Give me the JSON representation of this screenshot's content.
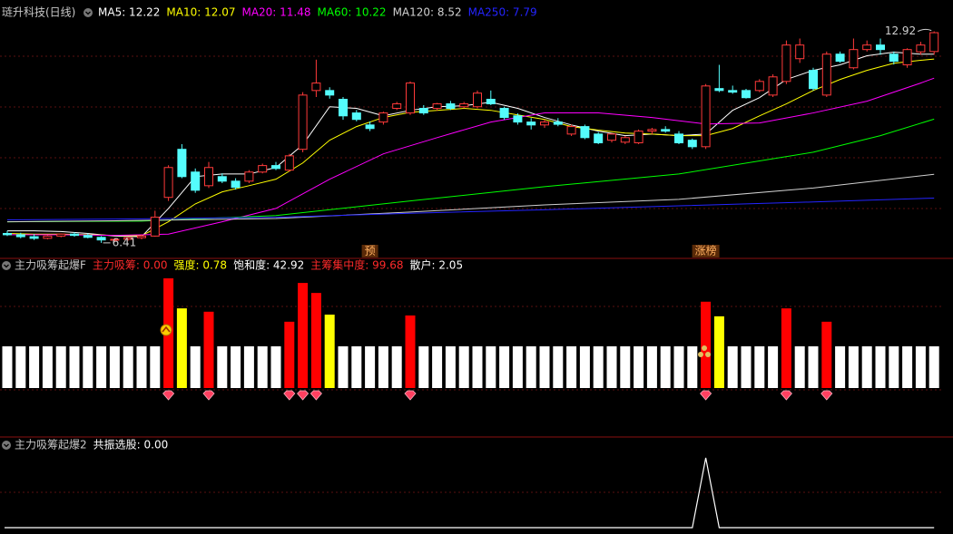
{
  "chart_data": [
    {
      "type": "candlestick",
      "title": "琏升科技(日线)",
      "title_color": "#c8c8c8",
      "ylim": [
        6.1,
        13.3
      ],
      "up_color": "#ff3a3a",
      "down_color": "#54fcfc",
      "candles": [
        [
          6.7,
          6.78,
          6.62,
          6.66
        ],
        [
          6.66,
          6.72,
          6.55,
          6.6
        ],
        [
          6.6,
          6.68,
          6.5,
          6.55
        ],
        [
          6.55,
          6.65,
          6.52,
          6.62
        ],
        [
          6.62,
          6.7,
          6.58,
          6.68
        ],
        [
          6.68,
          6.74,
          6.6,
          6.64
        ],
        [
          6.64,
          6.7,
          6.55,
          6.58
        ],
        [
          6.58,
          6.62,
          6.41,
          6.5
        ],
        [
          6.5,
          6.56,
          6.45,
          6.52
        ],
        [
          6.52,
          6.6,
          6.48,
          6.57
        ],
        [
          6.57,
          6.66,
          6.52,
          6.62
        ],
        [
          6.62,
          7.4,
          6.6,
          7.2
        ],
        [
          7.81,
          8.8,
          7.7,
          8.73
        ],
        [
          9.29,
          9.45,
          8.4,
          8.45
        ],
        [
          8.59,
          8.7,
          7.95,
          8.03
        ],
        [
          8.17,
          8.9,
          8.1,
          8.73
        ],
        [
          8.45,
          8.55,
          8.25,
          8.31
        ],
        [
          8.31,
          8.4,
          8.05,
          8.12
        ],
        [
          8.31,
          8.65,
          8.25,
          8.59
        ],
        [
          8.59,
          8.85,
          8.55,
          8.79
        ],
        [
          8.79,
          8.9,
          8.65,
          8.7
        ],
        [
          8.65,
          9.15,
          8.6,
          9.09
        ],
        [
          9.29,
          11.05,
          9.2,
          10.96
        ],
        [
          11.1,
          12.05,
          10.9,
          11.33
        ],
        [
          11.1,
          11.2,
          10.85,
          10.96
        ],
        [
          10.83,
          10.9,
          10.2,
          10.32
        ],
        [
          10.41,
          10.5,
          10.15,
          10.21
        ],
        [
          10.04,
          10.15,
          9.85,
          9.93
        ],
        [
          10.13,
          10.45,
          10.05,
          10.41
        ],
        [
          10.55,
          10.75,
          10.5,
          10.69
        ],
        [
          10.41,
          11.38,
          10.35,
          11.33
        ],
        [
          10.55,
          10.65,
          10.35,
          10.41
        ],
        [
          10.55,
          10.72,
          10.48,
          10.69
        ],
        [
          10.69,
          10.78,
          10.5,
          10.55
        ],
        [
          10.6,
          10.75,
          10.55,
          10.69
        ],
        [
          10.6,
          11.1,
          10.55,
          11.02
        ],
        [
          10.83,
          11.1,
          10.65,
          10.69
        ],
        [
          10.55,
          10.6,
          10.2,
          10.27
        ],
        [
          10.32,
          10.4,
          10.05,
          10.13
        ],
        [
          10.13,
          10.25,
          9.9,
          10.04
        ],
        [
          10.04,
          10.2,
          9.95,
          10.13
        ],
        [
          10.13,
          10.25,
          10.0,
          10.06
        ],
        [
          9.76,
          10.05,
          9.7,
          9.99
        ],
        [
          9.99,
          10.05,
          9.6,
          9.65
        ],
        [
          9.76,
          9.82,
          9.45,
          9.49
        ],
        [
          9.57,
          9.78,
          9.5,
          9.76
        ],
        [
          9.51,
          9.7,
          9.45,
          9.65
        ],
        [
          9.49,
          9.9,
          9.45,
          9.85
        ],
        [
          9.85,
          9.95,
          9.75,
          9.9
        ],
        [
          9.9,
          10.0,
          9.8,
          9.85
        ],
        [
          9.76,
          9.85,
          9.45,
          9.49
        ],
        [
          9.57,
          9.62,
          9.3,
          9.37
        ],
        [
          9.37,
          11.3,
          9.3,
          11.24
        ],
        [
          11.16,
          11.89,
          11.05,
          11.1
        ],
        [
          11.1,
          11.25,
          11.0,
          11.05
        ],
        [
          11.1,
          11.15,
          10.85,
          10.88
        ],
        [
          11.1,
          11.45,
          11.05,
          11.38
        ],
        [
          10.96,
          11.6,
          10.9,
          11.52
        ],
        [
          11.38,
          12.64,
          11.3,
          12.5
        ],
        [
          12.08,
          12.7,
          11.95,
          12.5
        ],
        [
          11.72,
          11.8,
          11.1,
          11.16
        ],
        [
          10.96,
          12.3,
          10.9,
          12.22
        ],
        [
          12.22,
          12.3,
          11.95,
          12.0
        ],
        [
          11.8,
          12.7,
          11.75,
          12.36
        ],
        [
          12.36,
          12.64,
          12.3,
          12.5
        ],
        [
          12.5,
          12.7,
          12.2,
          12.36
        ],
        [
          12.22,
          12.3,
          11.9,
          12.0
        ],
        [
          11.89,
          12.4,
          11.8,
          12.36
        ],
        [
          12.29,
          12.6,
          12.2,
          12.5
        ],
        [
          12.3,
          12.92,
          12.2,
          12.88
        ]
      ],
      "series": [
        {
          "name": "MA5: 12.22",
          "color": "#ffffff",
          "x": [
            0,
            2,
            4,
            6,
            8,
            10,
            12,
            14,
            16,
            18,
            20,
            22,
            24,
            26,
            28,
            30,
            32,
            34,
            36,
            38,
            40,
            42,
            44,
            46,
            48,
            50,
            52,
            54,
            56,
            58,
            60,
            62,
            64,
            66,
            68,
            69
          ],
          "values": [
            6.78,
            6.78,
            6.76,
            6.7,
            6.62,
            6.6,
            7.47,
            8.45,
            8.53,
            8.53,
            8.73,
            9.43,
            10.6,
            10.55,
            10.32,
            10.49,
            10.6,
            10.63,
            10.74,
            10.55,
            10.27,
            10.04,
            9.85,
            9.71,
            9.76,
            9.71,
            9.76,
            10.49,
            10.88,
            11.44,
            11.72,
            11.89,
            12.17,
            12.28,
            12.22,
            12.22
          ]
        },
        {
          "name": "MA10: 12.07",
          "color": "#ffff00",
          "x": [
            0,
            2,
            4,
            6,
            8,
            10,
            12,
            14,
            16,
            18,
            20,
            22,
            24,
            26,
            28,
            30,
            32,
            34,
            36,
            38,
            40,
            42,
            44,
            46,
            48,
            50,
            52,
            54,
            56,
            58,
            60,
            62,
            64,
            66,
            68,
            69
          ],
          "values": [
            6.7,
            6.68,
            6.68,
            6.66,
            6.64,
            6.63,
            7.06,
            7.61,
            7.98,
            8.17,
            8.37,
            8.87,
            9.57,
            9.99,
            10.27,
            10.43,
            10.49,
            10.55,
            10.49,
            10.35,
            10.21,
            9.99,
            9.88,
            9.79,
            9.76,
            9.71,
            9.71,
            9.93,
            10.32,
            10.69,
            11.1,
            11.44,
            11.72,
            11.94,
            12.03,
            12.07
          ]
        },
        {
          "name": "MA20: 11.48",
          "color": "#ff00ff",
          "x": [
            0,
            4,
            8,
            12,
            16,
            20,
            24,
            28,
            32,
            36,
            40,
            44,
            48,
            52,
            56,
            60,
            64,
            68,
            69
          ],
          "values": [
            6.66,
            6.66,
            6.64,
            6.68,
            7.06,
            7.47,
            8.37,
            9.15,
            9.65,
            10.13,
            10.41,
            10.41,
            10.27,
            10.07,
            10.1,
            10.41,
            10.77,
            11.33,
            11.48
          ]
        },
        {
          "name": "MA60: 10.22",
          "color": "#00ff00",
          "x": [
            0,
            10,
            20,
            30,
            40,
            50,
            60,
            65,
            69
          ],
          "values": [
            7.06,
            7.08,
            7.25,
            7.7,
            8.14,
            8.53,
            9.2,
            9.71,
            10.22
          ]
        },
        {
          "name": "MA120: 8.52",
          "color": "#d0d0d0",
          "x": [
            0,
            10,
            20,
            30,
            40,
            50,
            60,
            69
          ],
          "values": [
            7.06,
            7.1,
            7.16,
            7.36,
            7.58,
            7.75,
            8.1,
            8.52
          ]
        },
        {
          "name": "MA250: 7.79",
          "color": "#2424ff",
          "x": [
            0,
            10,
            20,
            30,
            40,
            50,
            60,
            69
          ],
          "values": [
            7.12,
            7.15,
            7.2,
            7.32,
            7.43,
            7.55,
            7.67,
            7.79
          ]
        }
      ],
      "annotations": [
        {
          "text": "12.92",
          "x": 69,
          "y": 12.92
        },
        {
          "text": "6.41",
          "x": 7,
          "y": 6.41
        }
      ],
      "markers": [
        {
          "text": "预",
          "x": 27
        },
        {
          "text": "涨榜",
          "x": 52
        }
      ]
    },
    {
      "type": "bar",
      "title": "主力吸筹起爆F",
      "title_color": "#c8c8c8",
      "ylim": [
        0,
        3
      ],
      "readouts": [
        {
          "text": "主力吸筹: 0.00",
          "color": "#ff2a2a"
        },
        {
          "text": "强度: 0.78",
          "color": "#ffff00"
        },
        {
          "text": "饱和度: 42.92",
          "color": "#ffffff"
        },
        {
          "text": "主筹集中度: 99.68",
          "color": "#ff2a2a"
        },
        {
          "text": "散户: 2.05",
          "color": "#ffffff"
        }
      ],
      "series": [
        {
          "color": "#ffffff",
          "values": [
            1,
            1,
            1,
            1,
            1,
            1,
            1,
            1,
            1,
            1,
            1,
            1,
            null,
            null,
            1,
            null,
            1,
            1,
            1,
            1,
            1,
            null,
            null,
            null,
            null,
            1,
            1,
            1,
            1,
            1,
            null,
            1,
            1,
            1,
            1,
            1,
            1,
            1,
            1,
            1,
            1,
            1,
            1,
            1,
            1,
            1,
            1,
            1,
            1,
            1,
            1,
            1,
            null,
            null,
            1,
            1,
            1,
            1,
            null,
            1,
            1,
            null,
            1,
            1,
            1,
            1,
            1,
            1,
            1,
            1
          ]
        },
        {
          "color": "#ff0000",
          "values": [
            null,
            null,
            null,
            null,
            null,
            null,
            null,
            null,
            null,
            null,
            null,
            null,
            2.63,
            null,
            null,
            1.83,
            null,
            null,
            null,
            null,
            null,
            1.59,
            2.52,
            2.28,
            null,
            null,
            null,
            null,
            null,
            null,
            1.74,
            null,
            null,
            null,
            null,
            null,
            null,
            null,
            null,
            null,
            null,
            null,
            null,
            null,
            null,
            null,
            null,
            null,
            null,
            null,
            null,
            null,
            2.07,
            null,
            null,
            null,
            null,
            null,
            1.91,
            null,
            null,
            1.59,
            null,
            null,
            null,
            null,
            null,
            null,
            null,
            null
          ]
        },
        {
          "color": "#ffff00",
          "values": [
            null,
            null,
            null,
            null,
            null,
            null,
            null,
            null,
            null,
            null,
            null,
            null,
            null,
            1.91,
            null,
            null,
            null,
            null,
            null,
            null,
            null,
            null,
            null,
            null,
            1.76,
            null,
            null,
            null,
            null,
            null,
            null,
            null,
            null,
            null,
            null,
            null,
            null,
            null,
            null,
            null,
            null,
            null,
            null,
            null,
            null,
            null,
            null,
            null,
            null,
            null,
            null,
            null,
            null,
            1.72,
            null,
            null,
            null,
            null,
            null,
            null,
            null,
            null,
            null,
            null,
            null,
            null,
            null,
            null,
            null,
            null
          ]
        }
      ]
    },
    {
      "type": "line",
      "title": "主力吸筹起爆2",
      "title_color": "#c8c8c8",
      "ylim": [
        0,
        1
      ],
      "series": [
        {
          "name": "共振选股: 0.00",
          "color": "#ffffff",
          "values": [
            0,
            0,
            0,
            0,
            0,
            0,
            0,
            0,
            0,
            0,
            0,
            0,
            0,
            0,
            0,
            0,
            0,
            0,
            0,
            0,
            0,
            0,
            0,
            0,
            0,
            0,
            0,
            0,
            0,
            0,
            0,
            0,
            0,
            0,
            0,
            0,
            0,
            0,
            0,
            0,
            0,
            0,
            0,
            0,
            0,
            0,
            0,
            0,
            0,
            0,
            0,
            0,
            1,
            0,
            0,
            0,
            0,
            0,
            0,
            0,
            0,
            0,
            0,
            0,
            0,
            0,
            0,
            0,
            0,
            0
          ]
        }
      ]
    }
  ]
}
